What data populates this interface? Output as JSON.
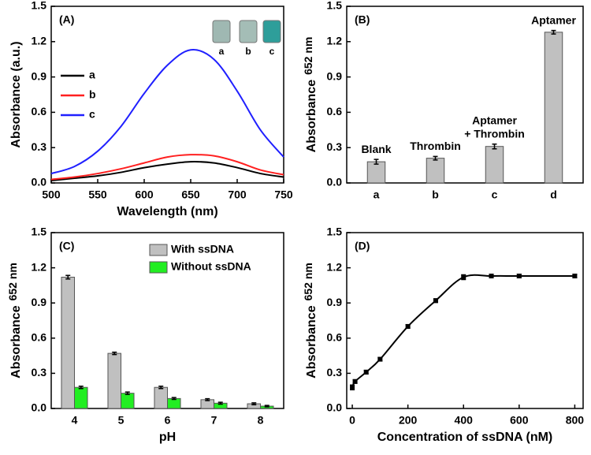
{
  "chart_data": [
    {
      "type": "line",
      "label": "(A)",
      "xlabel": "Wavelength (nm)",
      "ylabel": "Absorbance (a.u.)",
      "x": [
        500,
        525,
        550,
        575,
        600,
        625,
        650,
        675,
        700,
        725,
        750
      ],
      "xlim": [
        500,
        750
      ],
      "xticks": [
        500,
        550,
        600,
        650,
        700,
        750
      ],
      "ylim": [
        0,
        1.5
      ],
      "yticks": [
        {
          "value": 0,
          "label": "0.0"
        },
        0.3,
        0.6,
        0.9,
        1.2,
        1.5
      ],
      "series": [
        {
          "name": "a",
          "color": "#000000",
          "values": [
            0.02,
            0.04,
            0.06,
            0.09,
            0.13,
            0.16,
            0.18,
            0.17,
            0.13,
            0.08,
            0.05
          ]
        },
        {
          "name": "b",
          "color": "#ff2020",
          "values": [
            0.03,
            0.05,
            0.08,
            0.12,
            0.17,
            0.22,
            0.24,
            0.23,
            0.18,
            0.11,
            0.07
          ]
        },
        {
          "name": "c",
          "color": "#2020ff",
          "values": [
            0.08,
            0.14,
            0.27,
            0.48,
            0.76,
            1.0,
            1.13,
            1.05,
            0.78,
            0.45,
            0.22
          ]
        }
      ],
      "inset_labels": [
        "a",
        "b",
        "c"
      ]
    },
    {
      "type": "bar",
      "label": "(B)",
      "ylabel": "Absorbance",
      "ylabel_sub": "652 nm",
      "categories": [
        "a",
        "b",
        "c",
        "d"
      ],
      "values": [
        0.18,
        0.21,
        0.31,
        1.28
      ],
      "errors": [
        0.02,
        0.015,
        0.02,
        0.015
      ],
      "color": "#c0c0c0",
      "annotations": [
        [
          "Blank"
        ],
        [
          "Thrombin"
        ],
        [
          "Aptamer",
          "+ Thrombin"
        ],
        [
          "Aptamer"
        ]
      ],
      "ylim": [
        0,
        1.5
      ],
      "yticks": [
        {
          "value": 0,
          "label": "0.0"
        },
        0.3,
        0.6,
        0.9,
        1.2,
        1.5
      ]
    },
    {
      "type": "bar",
      "label": "(C)",
      "xlabel": "pH",
      "ylabel": "Absorbance",
      "ylabel_sub": "652 nm",
      "categories": [
        4,
        5,
        6,
        7,
        8
      ],
      "series": [
        {
          "name": "With ssDNA",
          "color": "#c0c0c0",
          "values": [
            1.12,
            0.47,
            0.18,
            0.075,
            0.04
          ],
          "errors": [
            0.015,
            0.01,
            0.01,
            0.008,
            0.008
          ]
        },
        {
          "name": "Without ssDNA",
          "color": "#22ee22",
          "values": [
            0.18,
            0.13,
            0.085,
            0.045,
            0.02
          ],
          "errors": [
            0.01,
            0.01,
            0.008,
            0.008,
            0.006
          ]
        }
      ],
      "ylim": [
        0,
        1.5
      ],
      "yticks": [
        {
          "value": 0,
          "label": "0.0"
        },
        0.3,
        0.6,
        0.9,
        1.2,
        1.5
      ]
    },
    {
      "type": "line",
      "label": "(D)",
      "xlabel": "Concentration of ssDNA (nM)",
      "ylabel": "Absorbance",
      "ylabel_sub": "652 nm",
      "x": [
        0,
        10,
        50,
        100,
        200,
        300,
        400,
        500,
        600,
        800
      ],
      "values": [
        0.18,
        0.23,
        0.31,
        0.42,
        0.7,
        0.92,
        1.12,
        1.13,
        1.13,
        1.13
      ],
      "errors": [
        0.02,
        0.015,
        0.015,
        0.015,
        0.015,
        0.015,
        0.02,
        0.015,
        0.015,
        0.015
      ],
      "color": "#000000",
      "xlim": [
        -20,
        830
      ],
      "xticks": [
        0,
        200,
        400,
        600,
        800
      ],
      "ylim": [
        0,
        1.5
      ],
      "yticks": [
        {
          "value": 0,
          "label": "0.0"
        },
        0.3,
        0.6,
        0.9,
        1.2,
        1.5
      ]
    }
  ]
}
